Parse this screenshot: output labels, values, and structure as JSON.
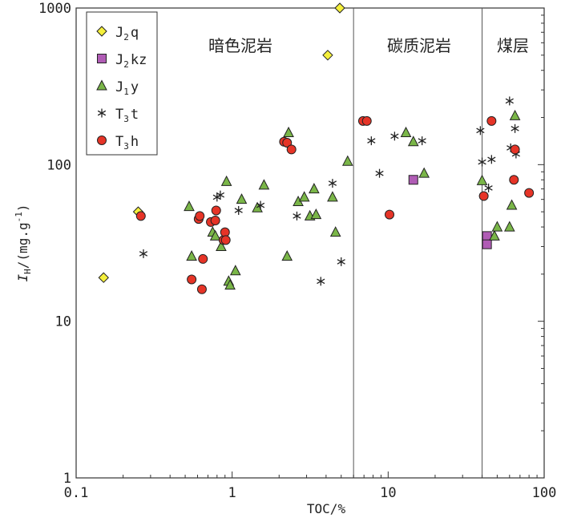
{
  "chart_data": {
    "type": "scatter",
    "title": "",
    "xlabel": "TOC/%",
    "ylabel": {
      "symbol": "I",
      "subscript": "H",
      "rest": "/(mg.g",
      "sup": "-1",
      "tail": ")"
    },
    "x_scale": "log",
    "y_scale": "log",
    "xlim": [
      0.1,
      100
    ],
    "ylim": [
      1,
      1000
    ],
    "x_ticks": [
      "0.1",
      "1",
      "10",
      "100"
    ],
    "y_ticks": [
      "1",
      "10",
      "100",
      "1000"
    ],
    "legend_position": "top-left",
    "regions": [
      {
        "label": "暗色泥岩",
        "x_range": [
          0.1,
          6
        ]
      },
      {
        "label": "碳质泥岩",
        "x_range": [
          6,
          40
        ]
      },
      {
        "label": "煤层",
        "x_range": [
          40,
          100
        ]
      }
    ],
    "boundaries": [
      6,
      40
    ],
    "series": [
      {
        "legend": {
          "base": "J",
          "sub": "2",
          "rest": "q"
        },
        "marker": "diamond",
        "color": "#f5f03c",
        "points": [
          [
            0.15,
            19
          ],
          [
            0.25,
            50
          ],
          [
            4.1,
            500
          ],
          [
            4.9,
            1000
          ]
        ]
      },
      {
        "legend": {
          "base": "J",
          "sub": "2",
          "rest": "kz"
        },
        "marker": "square",
        "color": "#b05cb5",
        "points": [
          [
            14.5,
            80
          ],
          [
            43,
            35
          ],
          [
            43,
            31
          ]
        ]
      },
      {
        "legend": {
          "base": "J",
          "sub": "1",
          "rest": "y"
        },
        "marker": "triangle",
        "color": "#7ab648",
        "points": [
          [
            0.53,
            54
          ],
          [
            0.55,
            26
          ],
          [
            0.75,
            37
          ],
          [
            0.78,
            35
          ],
          [
            0.85,
            30
          ],
          [
            0.92,
            78
          ],
          [
            0.95,
            18
          ],
          [
            0.97,
            17
          ],
          [
            1.05,
            21
          ],
          [
            1.15,
            60
          ],
          [
            1.45,
            53
          ],
          [
            1.6,
            74
          ],
          [
            2.25,
            26
          ],
          [
            2.3,
            160
          ],
          [
            2.65,
            58
          ],
          [
            2.9,
            62
          ],
          [
            3.15,
            47
          ],
          [
            3.35,
            70
          ],
          [
            3.45,
            48
          ],
          [
            4.4,
            62
          ],
          [
            4.6,
            37
          ],
          [
            5.5,
            105
          ],
          [
            13,
            160
          ],
          [
            14.5,
            140
          ],
          [
            17,
            88
          ],
          [
            40,
            79
          ],
          [
            48,
            35
          ],
          [
            50,
            40
          ],
          [
            60,
            40
          ],
          [
            62,
            55
          ],
          [
            65,
            205
          ]
        ]
      },
      {
        "legend": {
          "base": "T",
          "sub": "3",
          "rest": "t"
        },
        "marker": "asterisk",
        "color": "#222222",
        "points": [
          [
            0.27,
            27
          ],
          [
            0.8,
            62
          ],
          [
            0.84,
            64
          ],
          [
            1.1,
            51
          ],
          [
            1.52,
            55
          ],
          [
            2.6,
            47
          ],
          [
            3.7,
            18
          ],
          [
            4.4,
            76
          ],
          [
            5.0,
            24
          ],
          [
            7.8,
            142
          ],
          [
            8.8,
            88
          ],
          [
            11,
            152
          ],
          [
            16.5,
            142
          ],
          [
            39,
            165
          ],
          [
            40,
            104
          ],
          [
            44,
            71
          ],
          [
            46,
            108
          ],
          [
            60,
            255
          ],
          [
            61,
            128
          ],
          [
            65,
            170
          ],
          [
            66,
            117
          ]
        ]
      },
      {
        "legend": {
          "base": "T",
          "sub": "3",
          "rest": "h"
        },
        "marker": "circle",
        "color": "#e63427",
        "points": [
          [
            0.26,
            47
          ],
          [
            0.55,
            18.5
          ],
          [
            0.61,
            45
          ],
          [
            0.62,
            47
          ],
          [
            0.64,
            16
          ],
          [
            0.65,
            25
          ],
          [
            0.73,
            43
          ],
          [
            0.78,
            44
          ],
          [
            0.79,
            51
          ],
          [
            0.88,
            33
          ],
          [
            0.9,
            37
          ],
          [
            0.91,
            33
          ],
          [
            2.15,
            140
          ],
          [
            2.25,
            138
          ],
          [
            2.4,
            125
          ],
          [
            6.9,
            190
          ],
          [
            7.3,
            190
          ],
          [
            10.2,
            48
          ],
          [
            41,
            63
          ],
          [
            46,
            190
          ],
          [
            64,
            80
          ],
          [
            65,
            125
          ],
          [
            80,
            66
          ]
        ]
      }
    ]
  }
}
